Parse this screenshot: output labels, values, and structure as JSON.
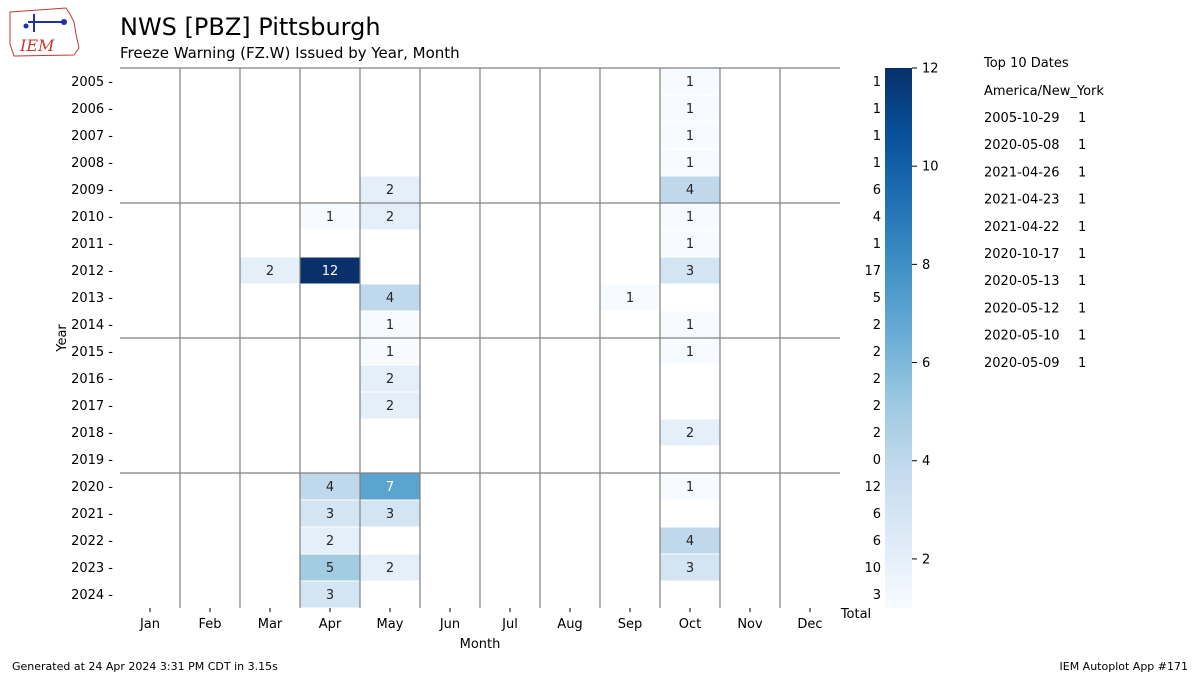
{
  "logo_text": "IEM",
  "title": "NWS [PBZ] Pittsburgh",
  "subtitle": "Freeze Warning (FZ.W) Issued by Year, Month",
  "footer_left": "Generated at 24 Apr 2024 3:31 PM CDT in 3.15s",
  "footer_right": "IEM Autoplot App #171",
  "top10": {
    "heading": "Top 10 Dates",
    "timezone": "America/New_York",
    "entries": [
      {
        "date": "2005-10-29",
        "count": "1"
      },
      {
        "date": "2020-05-08",
        "count": "1"
      },
      {
        "date": "2021-04-26",
        "count": "1"
      },
      {
        "date": "2021-04-23",
        "count": "1"
      },
      {
        "date": "2021-04-22",
        "count": "1"
      },
      {
        "date": "2020-10-17",
        "count": "1"
      },
      {
        "date": "2020-05-13",
        "count": "1"
      },
      {
        "date": "2020-05-12",
        "count": "1"
      },
      {
        "date": "2020-05-10",
        "count": "1"
      },
      {
        "date": "2020-05-09",
        "count": "1"
      }
    ]
  },
  "chart_data": {
    "type": "heatmap",
    "xlabel": "Month",
    "ylabel": "Year",
    "total_label": "Total",
    "months": [
      "Jan",
      "Feb",
      "Mar",
      "Apr",
      "May",
      "Jun",
      "Jul",
      "Aug",
      "Sep",
      "Oct",
      "Nov",
      "Dec"
    ],
    "years": [
      "2005",
      "2006",
      "2007",
      "2008",
      "2009",
      "2010",
      "2011",
      "2012",
      "2013",
      "2014",
      "2015",
      "2016",
      "2017",
      "2018",
      "2019",
      "2020",
      "2021",
      "2022",
      "2023",
      "2024"
    ],
    "cells": [
      {
        "year": "2005",
        "month": "Oct",
        "value": 1
      },
      {
        "year": "2006",
        "month": "Oct",
        "value": 1
      },
      {
        "year": "2007",
        "month": "Oct",
        "value": 1
      },
      {
        "year": "2008",
        "month": "Oct",
        "value": 1
      },
      {
        "year": "2009",
        "month": "May",
        "value": 2
      },
      {
        "year": "2009",
        "month": "Oct",
        "value": 4
      },
      {
        "year": "2010",
        "month": "Apr",
        "value": 1
      },
      {
        "year": "2010",
        "month": "May",
        "value": 2
      },
      {
        "year": "2010",
        "month": "Oct",
        "value": 1
      },
      {
        "year": "2011",
        "month": "Oct",
        "value": 1
      },
      {
        "year": "2012",
        "month": "Mar",
        "value": 2
      },
      {
        "year": "2012",
        "month": "Apr",
        "value": 12
      },
      {
        "year": "2012",
        "month": "Oct",
        "value": 3
      },
      {
        "year": "2013",
        "month": "May",
        "value": 4
      },
      {
        "year": "2013",
        "month": "Sep",
        "value": 1
      },
      {
        "year": "2014",
        "month": "May",
        "value": 1
      },
      {
        "year": "2014",
        "month": "Oct",
        "value": 1
      },
      {
        "year": "2015",
        "month": "May",
        "value": 1
      },
      {
        "year": "2015",
        "month": "Oct",
        "value": 1
      },
      {
        "year": "2016",
        "month": "May",
        "value": 2
      },
      {
        "year": "2017",
        "month": "May",
        "value": 2
      },
      {
        "year": "2018",
        "month": "Oct",
        "value": 2
      },
      {
        "year": "2020",
        "month": "Apr",
        "value": 4
      },
      {
        "year": "2020",
        "month": "May",
        "value": 7
      },
      {
        "year": "2020",
        "month": "Oct",
        "value": 1
      },
      {
        "year": "2021",
        "month": "Apr",
        "value": 3
      },
      {
        "year": "2021",
        "month": "May",
        "value": 3
      },
      {
        "year": "2022",
        "month": "Apr",
        "value": 2
      },
      {
        "year": "2022",
        "month": "Oct",
        "value": 4
      },
      {
        "year": "2023",
        "month": "Apr",
        "value": 5
      },
      {
        "year": "2023",
        "month": "May",
        "value": 2
      },
      {
        "year": "2023",
        "month": "Oct",
        "value": 3
      },
      {
        "year": "2024",
        "month": "Apr",
        "value": 3
      }
    ],
    "totals": [
      1,
      1,
      1,
      1,
      6,
      4,
      1,
      17,
      5,
      2,
      2,
      2,
      2,
      2,
      0,
      12,
      6,
      6,
      10,
      3
    ],
    "colorbar": {
      "min": 1,
      "max": 12,
      "ticks": [
        2,
        4,
        6,
        8,
        10,
        12
      ],
      "colormap": "Blues"
    },
    "group_separator_years": [
      "2010",
      "2015",
      "2020"
    ],
    "grid": true
  }
}
